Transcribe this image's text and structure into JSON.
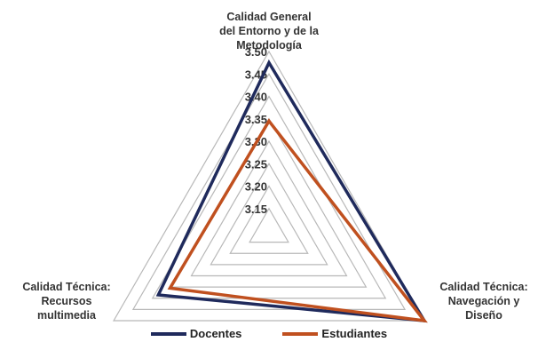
{
  "chart_data": {
    "type": "radar",
    "axes": [
      "Calidad General\ndel Entorno y de la\nMetodología",
      "Calidad Técnica:\nNavegación y\nDiseño",
      "Calidad Técnica:\nRecursos\nmultimedia"
    ],
    "rlim": [
      3.1,
      3.5
    ],
    "ticks": [
      "3.15",
      "3.20",
      "3.25",
      "3.30",
      "3.35",
      "3.40",
      "3.45",
      "3.50"
    ],
    "tick_values": [
      3.15,
      3.2,
      3.25,
      3.3,
      3.35,
      3.4,
      3.45,
      3.5
    ],
    "series": [
      {
        "name": "Docentes",
        "color": "#1f2a5c",
        "values": [
          3.475,
          3.5,
          3.385
        ]
      },
      {
        "name": "Estudiantes",
        "color": "#c0501f",
        "values": [
          3.345,
          3.5,
          3.355
        ]
      }
    ],
    "grid": true,
    "legend_position": "bottom"
  }
}
